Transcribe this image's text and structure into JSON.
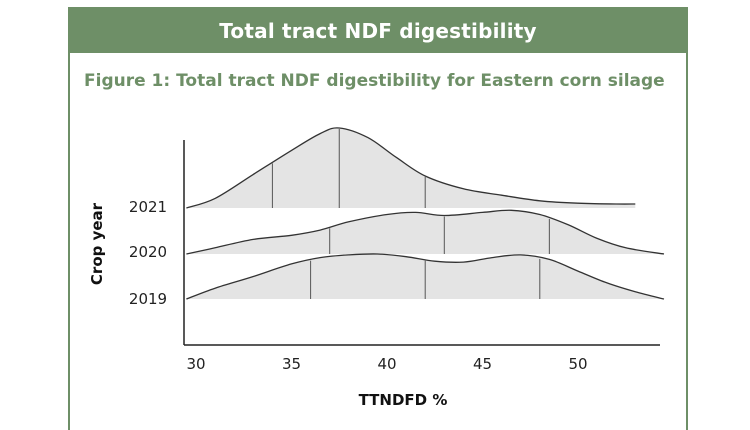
{
  "banner_title": "Total tract NDF digestibility",
  "chart_data": {
    "type": "ridgeline",
    "title": "Figure 1: Total tract NDF digestibility for Eastern corn silage",
    "xlabel": "TTNDFD %",
    "ylabel": "Crop year",
    "x_ticks": [
      30,
      35,
      40,
      45,
      50
    ],
    "xlim": [
      29.5,
      54.5
    ],
    "series": [
      {
        "name": "2021",
        "x": [
          29.5,
          31,
          33,
          35,
          36.5,
          37.5,
          39,
          40.5,
          42,
          44,
          46,
          48,
          50,
          52,
          53
        ],
        "density": [
          0.0,
          0.12,
          0.42,
          0.72,
          0.93,
          1.0,
          0.88,
          0.63,
          0.4,
          0.24,
          0.16,
          0.09,
          0.06,
          0.05,
          0.05
        ],
        "quartile_lines": [
          34,
          37.5,
          42
        ]
      },
      {
        "name": "2020",
        "x": [
          29.5,
          31,
          33,
          35,
          36.5,
          38,
          40,
          41.5,
          43,
          45,
          46.5,
          48,
          49.5,
          51,
          52.5,
          54.5
        ],
        "density": [
          0.0,
          0.12,
          0.28,
          0.36,
          0.46,
          0.62,
          0.76,
          0.8,
          0.74,
          0.8,
          0.84,
          0.76,
          0.56,
          0.3,
          0.12,
          0.0
        ],
        "quartile_lines": [
          37,
          43,
          48.5
        ]
      },
      {
        "name": "2019",
        "x": [
          29.5,
          31,
          33,
          35,
          36.5,
          38,
          39.5,
          41,
          42.5,
          44,
          45.5,
          47,
          48.5,
          50,
          51.5,
          53,
          54.5
        ],
        "density": [
          0.0,
          0.24,
          0.5,
          0.78,
          0.92,
          0.98,
          1.0,
          0.94,
          0.84,
          0.82,
          0.92,
          0.98,
          0.88,
          0.62,
          0.36,
          0.16,
          0.0
        ],
        "quartile_lines": [
          36,
          42,
          48
        ]
      }
    ]
  }
}
